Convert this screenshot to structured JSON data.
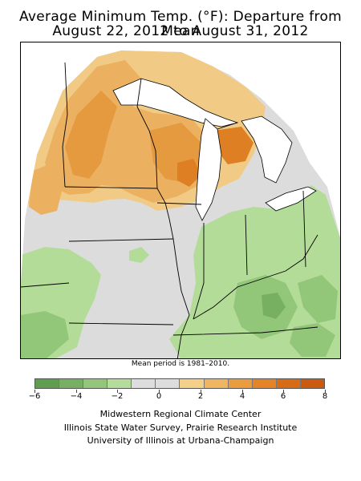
{
  "title": {
    "line1": "Average Minimum Temp. (°F): Departure from Mean",
    "line2": "August 22, 2012 to August 31, 2012"
  },
  "mean_period_note": "Mean period is 1981–2010.",
  "legend": {
    "ticks": [
      "−6",
      "−4",
      "−2",
      "0",
      "2",
      "4",
      "6",
      "8"
    ],
    "swatches": [
      "#5e9e4e",
      "#78b063",
      "#93c67a",
      "#b4dc9a",
      "#dddddd",
      "#dddddd",
      "#f4cf88",
      "#efb560",
      "#ea9c3f",
      "#e58427",
      "#d86c16",
      "#c95a10"
    ]
  },
  "colors": {
    "gray": "#dcdcdc",
    "light_green": "#b3dc98",
    "mid_green": "#92c679",
    "dark_green": "#77b060",
    "light_orange": "#f1cb85",
    "mid_orange": "#ebb161",
    "dark_orange": "#e59a3f",
    "deep_orange": "#dd7f22",
    "water": "#ffffff",
    "lines": "#000000"
  },
  "credits": [
    "Midwestern Regional Climate Center",
    "Illinois State Water Survey, Prairie Research Institute",
    "University of Illinois at Urbana-Champaign"
  ]
}
